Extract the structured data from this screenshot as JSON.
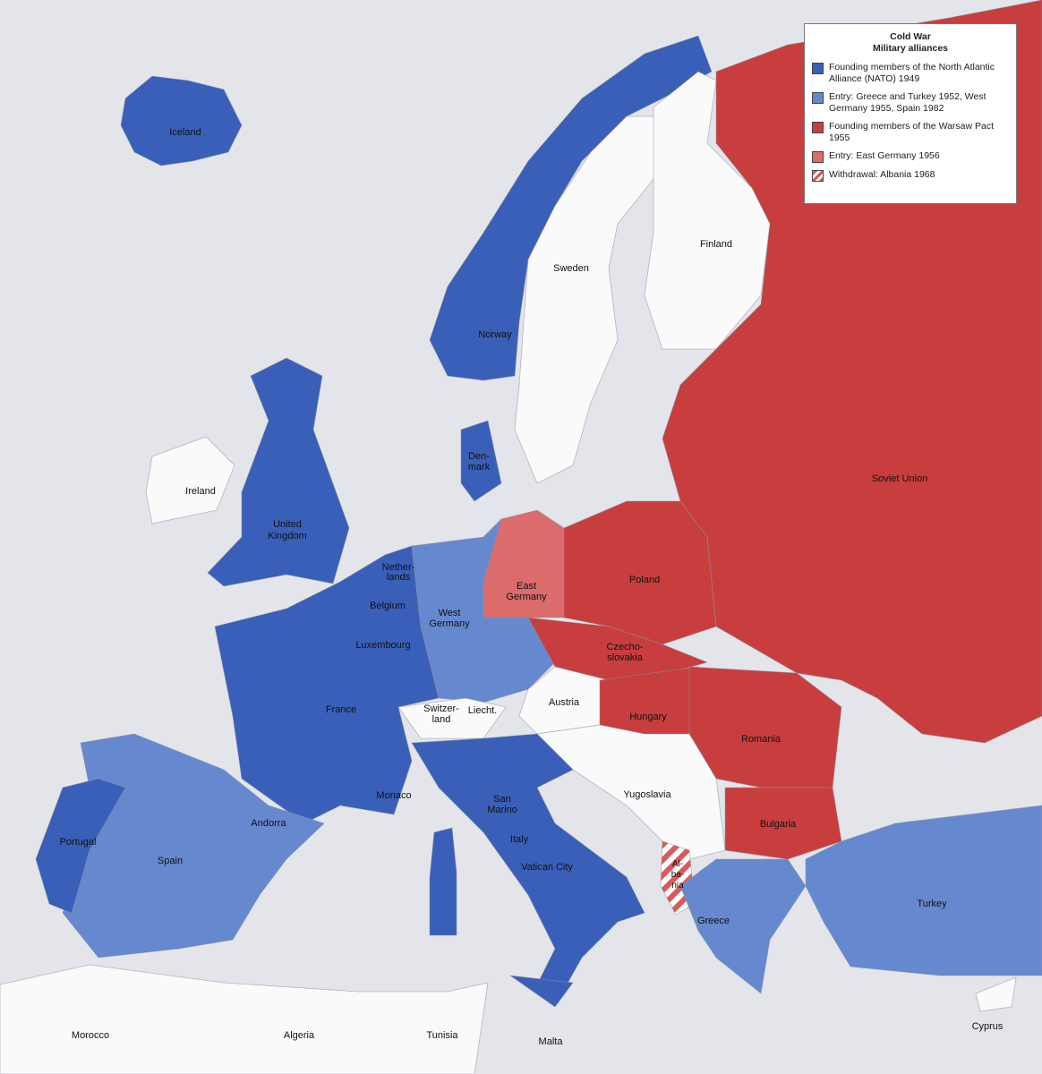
{
  "legend": {
    "title": "Cold War",
    "subtitle": "Military alliances",
    "items": [
      {
        "label": "Founding members of the North Atlantic Alliance (NATO) 1949",
        "color": "#3a5fb8"
      },
      {
        "label": "Entry: Greece and Turkey 1952, West Germany 1955, Spain 1982",
        "color": "#6688cf"
      },
      {
        "label": "Founding members of the Warsaw Pact 1955",
        "color": "#c83e3e"
      },
      {
        "label": "Entry: East Germany 1956",
        "color": "#dc6b6b"
      },
      {
        "label": "Withdrawal: Albania 1968",
        "color": "hatched-red-white"
      }
    ]
  },
  "colors": {
    "nato_1949": "#3a5fb8",
    "nato_later": "#6688cf",
    "warsaw": "#c83e3e",
    "east_germany": "#dc6b6b",
    "neutral": "#fafafa",
    "sea": "#e3e5ea"
  },
  "labels": {
    "iceland": "Iceland",
    "norway": "Norway",
    "sweden": "Sweden",
    "finland": "Finland",
    "soviet_union": "Soviet Union",
    "ireland": "Ireland",
    "uk1": "United",
    "uk2": "Kingdom",
    "denmark1": "Den-",
    "denmark2": "mark",
    "netherlands1": "Nether-",
    "netherlands2": "lands",
    "belgium": "Belgium",
    "luxembourg": "Luxembourg",
    "west_germany1": "West",
    "west_germany2": "Germany",
    "east_germany1": "East",
    "east_germany2": "Germany",
    "poland": "Poland",
    "czech1": "Czecho-",
    "czech2": "slovakia",
    "austria": "Austria",
    "switzerland1": "Switzer-",
    "switzerland2": "land",
    "liecht": "Liecht.",
    "hungary": "Hungary",
    "romania": "Romania",
    "france": "France",
    "monaco": "Monaco",
    "andorra": "Andorra",
    "portugal": "Portugal",
    "spain": "Spain",
    "san_marino1": "San",
    "san_marino2": "Marino",
    "italy": "Italy",
    "vatican": "Vatican City",
    "yugoslavia": "Yugoslavia",
    "bulgaria": "Bulgaria",
    "albania1": "Al-",
    "albania2": "ba-",
    "albania3": "nia",
    "greece": "Greece",
    "turkey": "Turkey",
    "morocco": "Morocco",
    "algeria": "Algeria",
    "tunisia": "Tunisia",
    "malta": "Malta",
    "cyprus": "Cyprus"
  }
}
